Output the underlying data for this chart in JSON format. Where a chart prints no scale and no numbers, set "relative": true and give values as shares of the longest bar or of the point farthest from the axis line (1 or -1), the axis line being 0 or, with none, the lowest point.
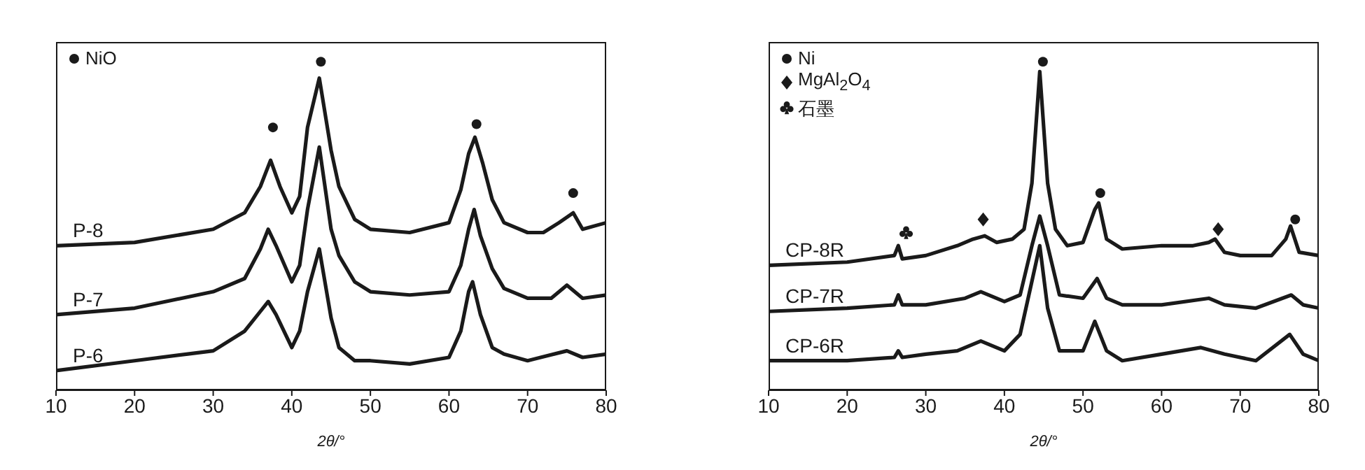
{
  "chart_data": [
    {
      "type": "line",
      "relative": true,
      "xlabel": "2θ/°",
      "xlim": [
        10,
        80
      ],
      "xticks": [
        10,
        20,
        30,
        40,
        50,
        60,
        70,
        80
      ],
      "tick_labels": "x",
      "legend": "top left",
      "series": [
        {
          "name": "P-8",
          "color": "#1a1a1a",
          "x": [
            10,
            20,
            30,
            34,
            36,
            37.3,
            38.5,
            40,
            41,
            42,
            43.5,
            45,
            46,
            48,
            50,
            55,
            60,
            61.5,
            62.5,
            63.3,
            64.3,
            65.5,
            67,
            70,
            72,
            74,
            75.8,
            77,
            80
          ],
          "values": [
            0.44,
            0.45,
            0.49,
            0.54,
            0.62,
            0.7,
            0.62,
            0.54,
            0.59,
            0.8,
            0.95,
            0.73,
            0.62,
            0.52,
            0.49,
            0.48,
            0.51,
            0.61,
            0.72,
            0.77,
            0.69,
            0.58,
            0.51,
            0.48,
            0.48,
            0.51,
            0.54,
            0.49,
            0.51
          ]
        },
        {
          "name": "P-7",
          "color": "#1a1a1a",
          "x": [
            10,
            20,
            30,
            34,
            36,
            37,
            38,
            40,
            41,
            42,
            43.5,
            45,
            46,
            48,
            50,
            55,
            60,
            61.5,
            62.5,
            63.2,
            64,
            65.5,
            67,
            70,
            73,
            75,
            77,
            80
          ],
          "values": [
            0.23,
            0.25,
            0.3,
            0.34,
            0.43,
            0.49,
            0.44,
            0.33,
            0.38,
            0.55,
            0.74,
            0.49,
            0.41,
            0.33,
            0.3,
            0.29,
            0.3,
            0.38,
            0.49,
            0.55,
            0.47,
            0.37,
            0.31,
            0.28,
            0.28,
            0.32,
            0.28,
            0.29
          ]
        },
        {
          "name": "P-6",
          "color": "#1a1a1a",
          "x": [
            10,
            20,
            30,
            34,
            36,
            37,
            38,
            40,
            41,
            42,
            43.5,
            45,
            46,
            48,
            50,
            55,
            60,
            61.5,
            62.5,
            63,
            64,
            65.5,
            67,
            70,
            75,
            77,
            80
          ],
          "values": [
            0.06,
            0.09,
            0.12,
            0.18,
            0.24,
            0.27,
            0.23,
            0.13,
            0.18,
            0.3,
            0.43,
            0.22,
            0.13,
            0.09,
            0.09,
            0.08,
            0.1,
            0.18,
            0.3,
            0.33,
            0.23,
            0.13,
            0.11,
            0.09,
            0.12,
            0.1,
            0.11
          ]
        },
        {
          "name": "NiO",
          "type": "scatter",
          "marker": "circle",
          "color": "#1a1a1a",
          "x": [
            37.6,
            43.7,
            63.5,
            75.8
          ],
          "values": [
            0.8,
            1,
            0.81,
            0.6
          ]
        }
      ]
    },
    {
      "type": "line",
      "relative": true,
      "xlabel": "2θ/°",
      "xlim": [
        10,
        80
      ],
      "xticks": [
        10,
        20,
        30,
        40,
        50,
        60,
        70,
        80
      ],
      "tick_labels": "x",
      "legend": "top left",
      "series": [
        {
          "name": "CP-8R",
          "color": "#1a1a1a",
          "x": [
            10,
            20,
            26,
            26.5,
            27,
            30,
            34,
            36,
            37.5,
            39,
            41,
            42.5,
            43.5,
            44.5,
            45.5,
            46.5,
            48,
            50,
            51.5,
            52,
            53,
            55,
            60,
            64,
            66,
            66.8,
            68,
            70,
            74,
            75.8,
            76.4,
            77.5,
            80
          ],
          "values": [
            0.38,
            0.39,
            0.41,
            0.44,
            0.4,
            0.41,
            0.44,
            0.46,
            0.47,
            0.45,
            0.46,
            0.49,
            0.63,
            0.97,
            0.63,
            0.49,
            0.44,
            0.45,
            0.55,
            0.57,
            0.46,
            0.43,
            0.44,
            0.44,
            0.45,
            0.46,
            0.42,
            0.41,
            0.41,
            0.46,
            0.5,
            0.42,
            0.41
          ]
        },
        {
          "name": "CP-7R",
          "color": "#1a1a1a",
          "x": [
            10,
            20,
            26,
            26.5,
            27,
            30,
            35,
            37,
            40,
            42,
            43.5,
            44.5,
            45.5,
            47,
            50,
            51.8,
            53,
            55,
            60,
            66,
            68,
            72,
            76.5,
            78,
            80
          ],
          "values": [
            0.24,
            0.25,
            0.26,
            0.29,
            0.26,
            0.26,
            0.28,
            0.3,
            0.27,
            0.29,
            0.44,
            0.53,
            0.44,
            0.29,
            0.28,
            0.34,
            0.28,
            0.26,
            0.26,
            0.28,
            0.26,
            0.25,
            0.29,
            0.26,
            0.25
          ]
        },
        {
          "name": "CP-6R",
          "color": "#1a1a1a",
          "x": [
            10,
            20,
            26,
            26.5,
            27,
            30,
            34,
            37,
            40,
            42,
            43.3,
            44.5,
            45.5,
            47,
            50,
            51.5,
            53,
            55,
            60,
            65,
            68,
            72,
            76.3,
            78,
            80
          ],
          "values": [
            0.09,
            0.09,
            0.1,
            0.12,
            0.1,
            0.11,
            0.12,
            0.15,
            0.12,
            0.17,
            0.31,
            0.44,
            0.25,
            0.12,
            0.12,
            0.21,
            0.12,
            0.09,
            0.11,
            0.13,
            0.11,
            0.09,
            0.17,
            0.11,
            0.09
          ]
        },
        {
          "name": "Ni",
          "type": "scatter",
          "marker": "circle",
          "color": "#1a1a1a",
          "x": [
            44.9,
            52.2,
            77
          ],
          "values": [
            1,
            0.6,
            0.52
          ]
        },
        {
          "name": "MgAl$_{2}$O$_{4}$",
          "type": "scatter",
          "marker": "diamond",
          "color": "#1a1a1a",
          "x": [
            37.3,
            67.2
          ],
          "values": [
            0.52,
            0.49
          ]
        },
        {
          "name": "石墨",
          "type": "scatter",
          "color": "#1a1a1a",
          "x": [
            27.5
          ],
          "values": [
            0.48
          ]
        }
      ]
    }
  ]
}
